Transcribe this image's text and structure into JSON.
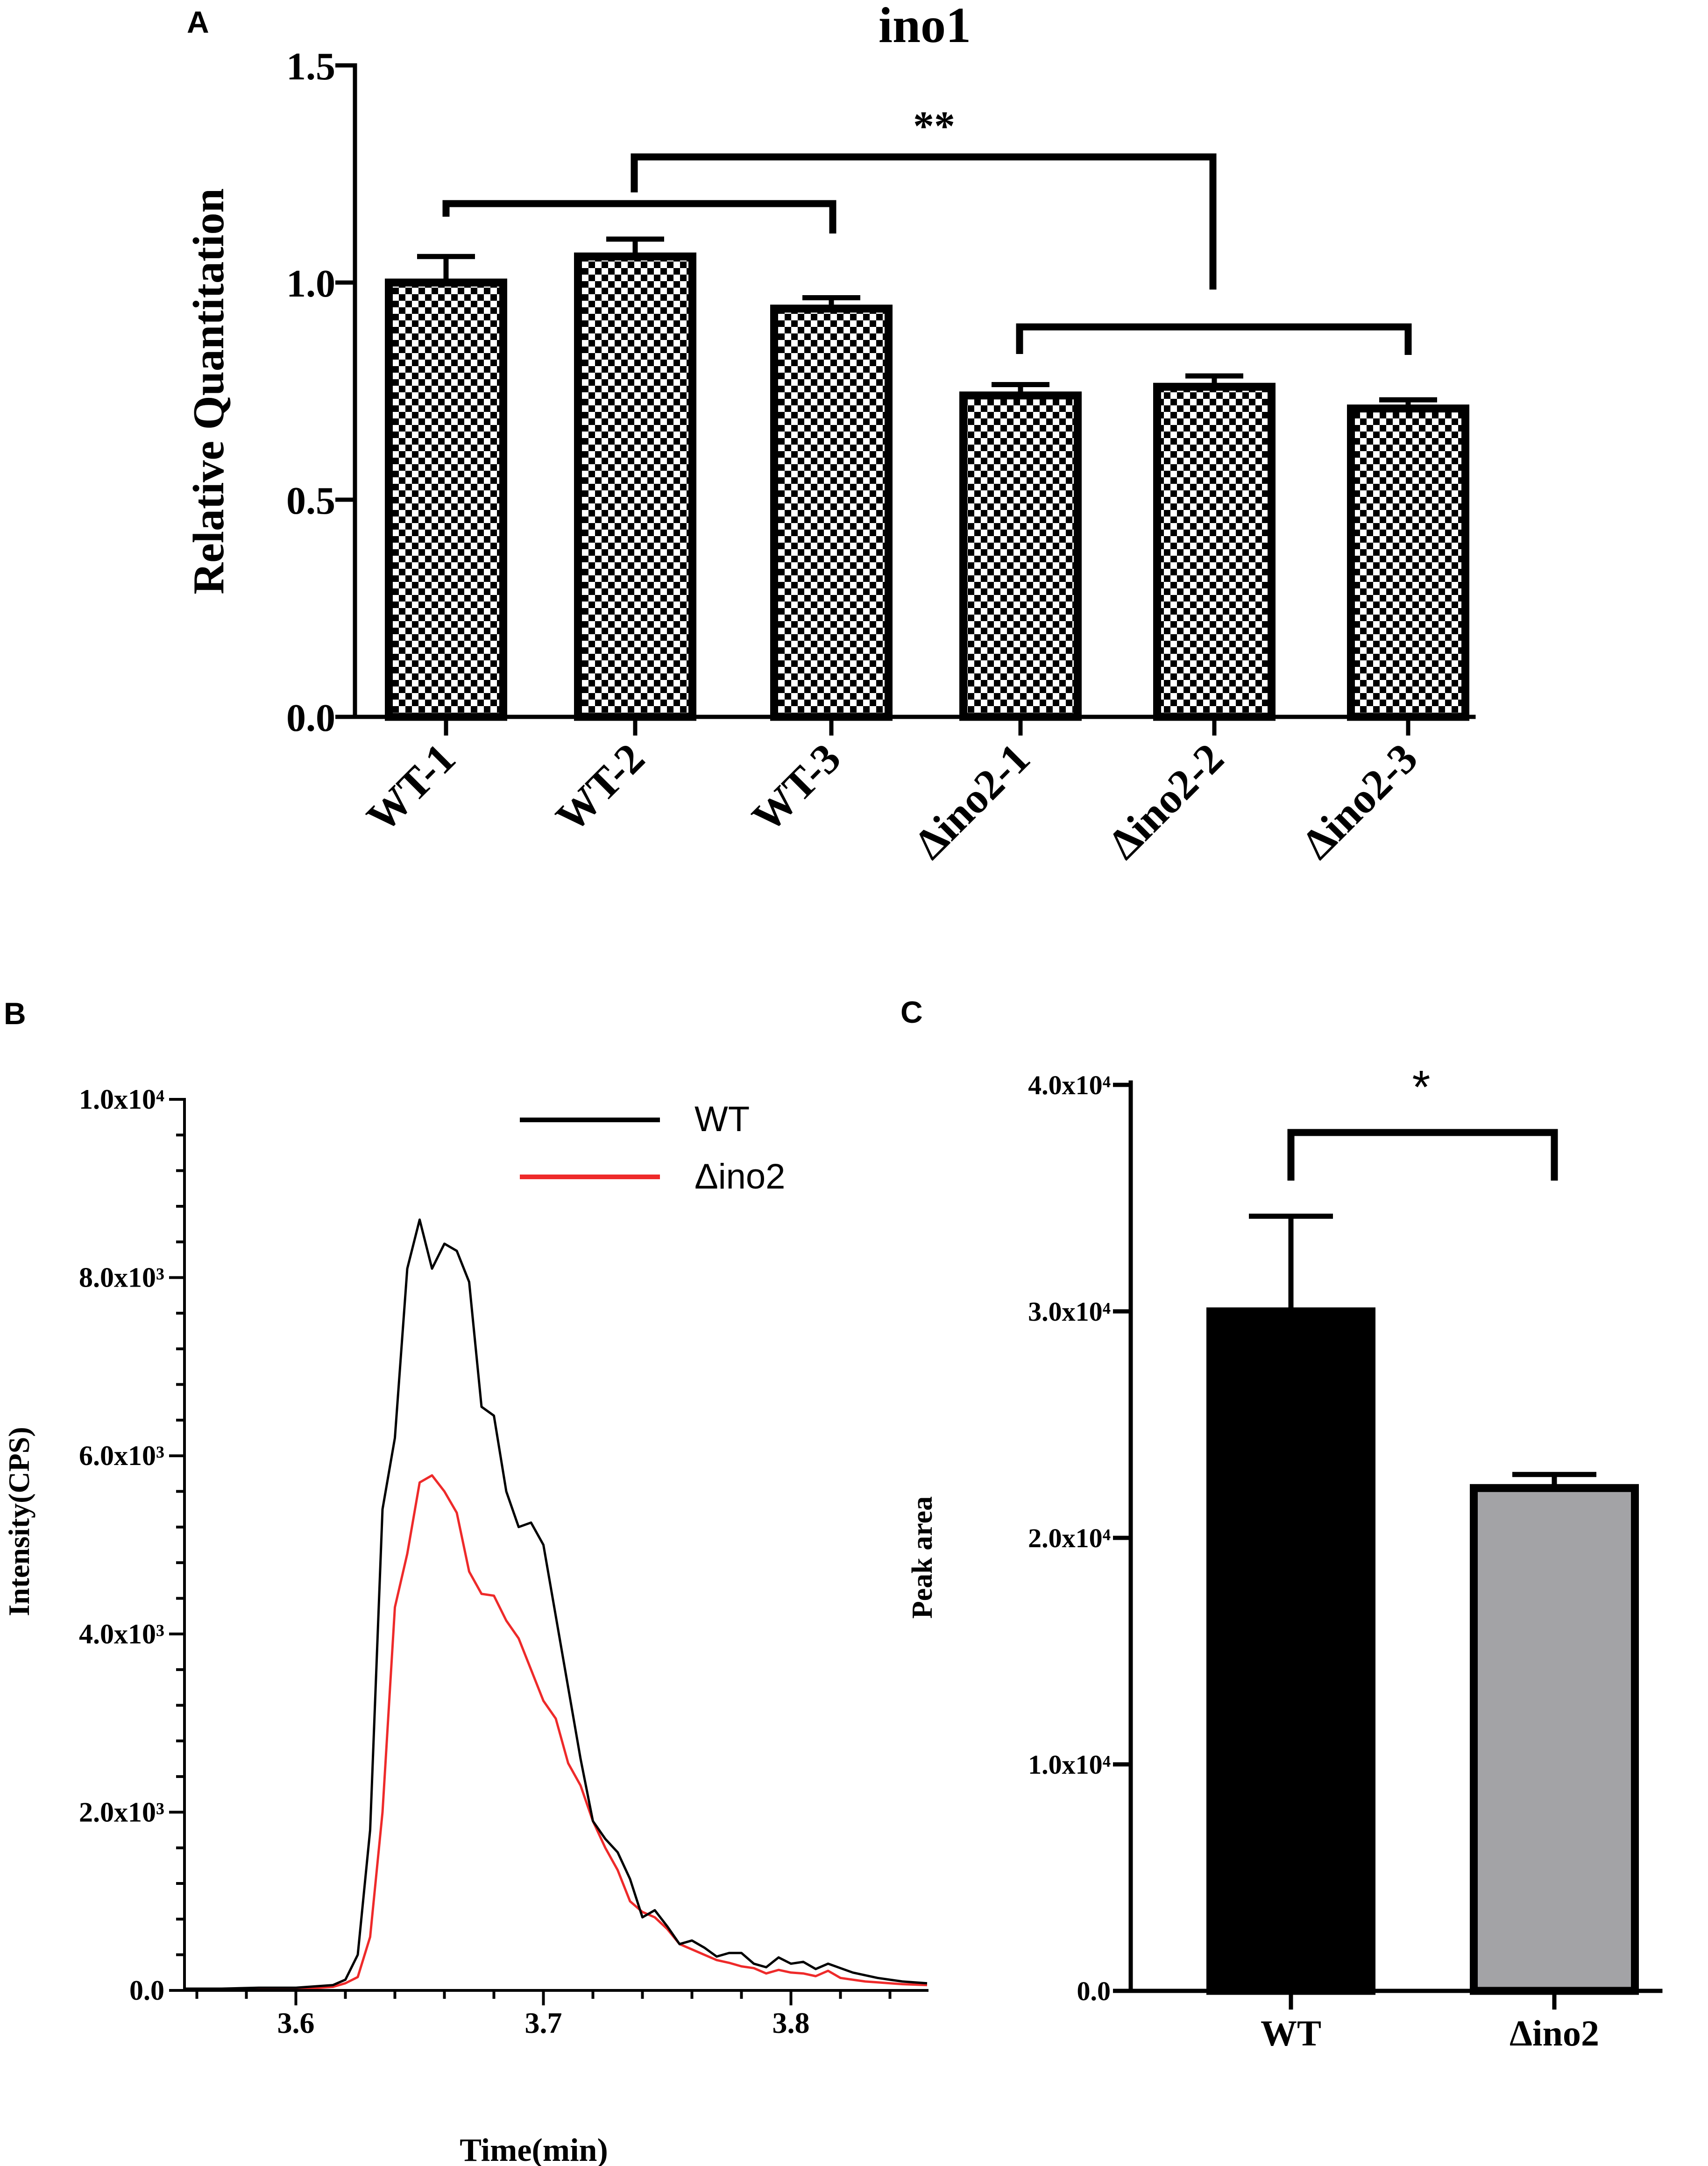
{
  "panels": {
    "a": {
      "label": "A"
    },
    "b": {
      "label": "B"
    },
    "c": {
      "label": "C"
    }
  },
  "colors": {
    "wt_line": "#000000",
    "ino2_line": "#ee2a2a",
    "bar_wt": "#000000",
    "bar_ino2": "#a3a3a6"
  },
  "chart_data": [
    {
      "id": "A",
      "type": "bar",
      "title": "ino1",
      "ylabel": "Relative Quantitation",
      "xlabel": "",
      "ylim": [
        0,
        1.5
      ],
      "yticks": [
        "0.0",
        "0.5",
        "1.0",
        "1.5"
      ],
      "categories": [
        "WT-1",
        "WT-2",
        "WT-3",
        "Δino2-1",
        "Δino2-2",
        "Δino2-3"
      ],
      "values": [
        1.0,
        1.06,
        0.94,
        0.74,
        0.76,
        0.71
      ],
      "errors": [
        0.06,
        0.04,
        0.025,
        0.025,
        0.025,
        0.02
      ],
      "fill": "checkerboard",
      "significance": "**"
    },
    {
      "id": "B",
      "type": "line",
      "xlabel": "Time(min)",
      "ylabel": "Intensity(CPS)",
      "xlim": [
        3.555,
        3.855
      ],
      "ylim": [
        0,
        10000
      ],
      "xticks": [
        "3.6",
        "3.7",
        "3.8"
      ],
      "yticks": [
        "0.0",
        "2.0x10³",
        "4.0x10³",
        "6.0x10³",
        "8.0x10³",
        "1.0x10⁴"
      ],
      "series": [
        {
          "name": "WT",
          "color": "#000000",
          "x": [
            3.555,
            3.57,
            3.585,
            3.6,
            3.61,
            3.615,
            3.62,
            3.625,
            3.63,
            3.635,
            3.64,
            3.645,
            3.65,
            3.655,
            3.66,
            3.665,
            3.67,
            3.675,
            3.68,
            3.685,
            3.69,
            3.695,
            3.7,
            3.705,
            3.71,
            3.715,
            3.72,
            3.725,
            3.73,
            3.735,
            3.74,
            3.745,
            3.75,
            3.755,
            3.76,
            3.765,
            3.77,
            3.775,
            3.78,
            3.785,
            3.79,
            3.795,
            3.8,
            3.805,
            3.81,
            3.815,
            3.82,
            3.825,
            3.83,
            3.835,
            3.84,
            3.845,
            3.855
          ],
          "y": [
            20,
            20,
            30,
            30,
            50,
            60,
            120,
            400,
            1800,
            5400,
            6200,
            8100,
            8650,
            8100,
            8380,
            8300,
            7950,
            6550,
            6450,
            5600,
            5200,
            5250,
            5000,
            4200,
            3400,
            2600,
            1900,
            1700,
            1550,
            1250,
            820,
            900,
            720,
            520,
            560,
            480,
            380,
            420,
            420,
            300,
            260,
            370,
            300,
            320,
            240,
            300,
            250,
            200,
            170,
            140,
            120,
            100,
            80
          ]
        },
        {
          "name": "Δino2",
          "color": "#ee2a2a",
          "x": [
            3.555,
            3.57,
            3.585,
            3.6,
            3.61,
            3.615,
            3.62,
            3.625,
            3.63,
            3.635,
            3.64,
            3.645,
            3.65,
            3.655,
            3.66,
            3.665,
            3.67,
            3.675,
            3.68,
            3.685,
            3.69,
            3.695,
            3.7,
            3.705,
            3.71,
            3.715,
            3.72,
            3.725,
            3.73,
            3.735,
            3.74,
            3.745,
            3.75,
            3.755,
            3.76,
            3.765,
            3.77,
            3.775,
            3.78,
            3.785,
            3.79,
            3.795,
            3.8,
            3.805,
            3.81,
            3.815,
            3.82,
            3.825,
            3.83,
            3.835,
            3.84,
            3.845,
            3.855
          ],
          "y": [
            10,
            10,
            15,
            20,
            30,
            40,
            80,
            150,
            600,
            2000,
            4300,
            4900,
            5700,
            5780,
            5600,
            5360,
            4700,
            4450,
            4430,
            4150,
            3950,
            3600,
            3250,
            3050,
            2550,
            2300,
            1900,
            1600,
            1350,
            1000,
            880,
            820,
            690,
            520,
            460,
            400,
            340,
            310,
            270,
            250,
            190,
            230,
            200,
            190,
            160,
            220,
            140,
            120,
            100,
            90,
            80,
            70,
            60
          ]
        }
      ],
      "legend": [
        "WT",
        "Δino2"
      ]
    },
    {
      "id": "C",
      "type": "bar",
      "xlabel": "",
      "ylabel": "Peak area",
      "ylim": [
        0,
        40000
      ],
      "yticks": [
        "0.0",
        "1.0x10⁴",
        "2.0x10⁴",
        "3.0x10⁴",
        "4.0x10⁴"
      ],
      "categories": [
        "WT",
        "Δino2"
      ],
      "values": [
        30000,
        22200
      ],
      "errors": [
        4200,
        600
      ],
      "significance": "*"
    }
  ]
}
